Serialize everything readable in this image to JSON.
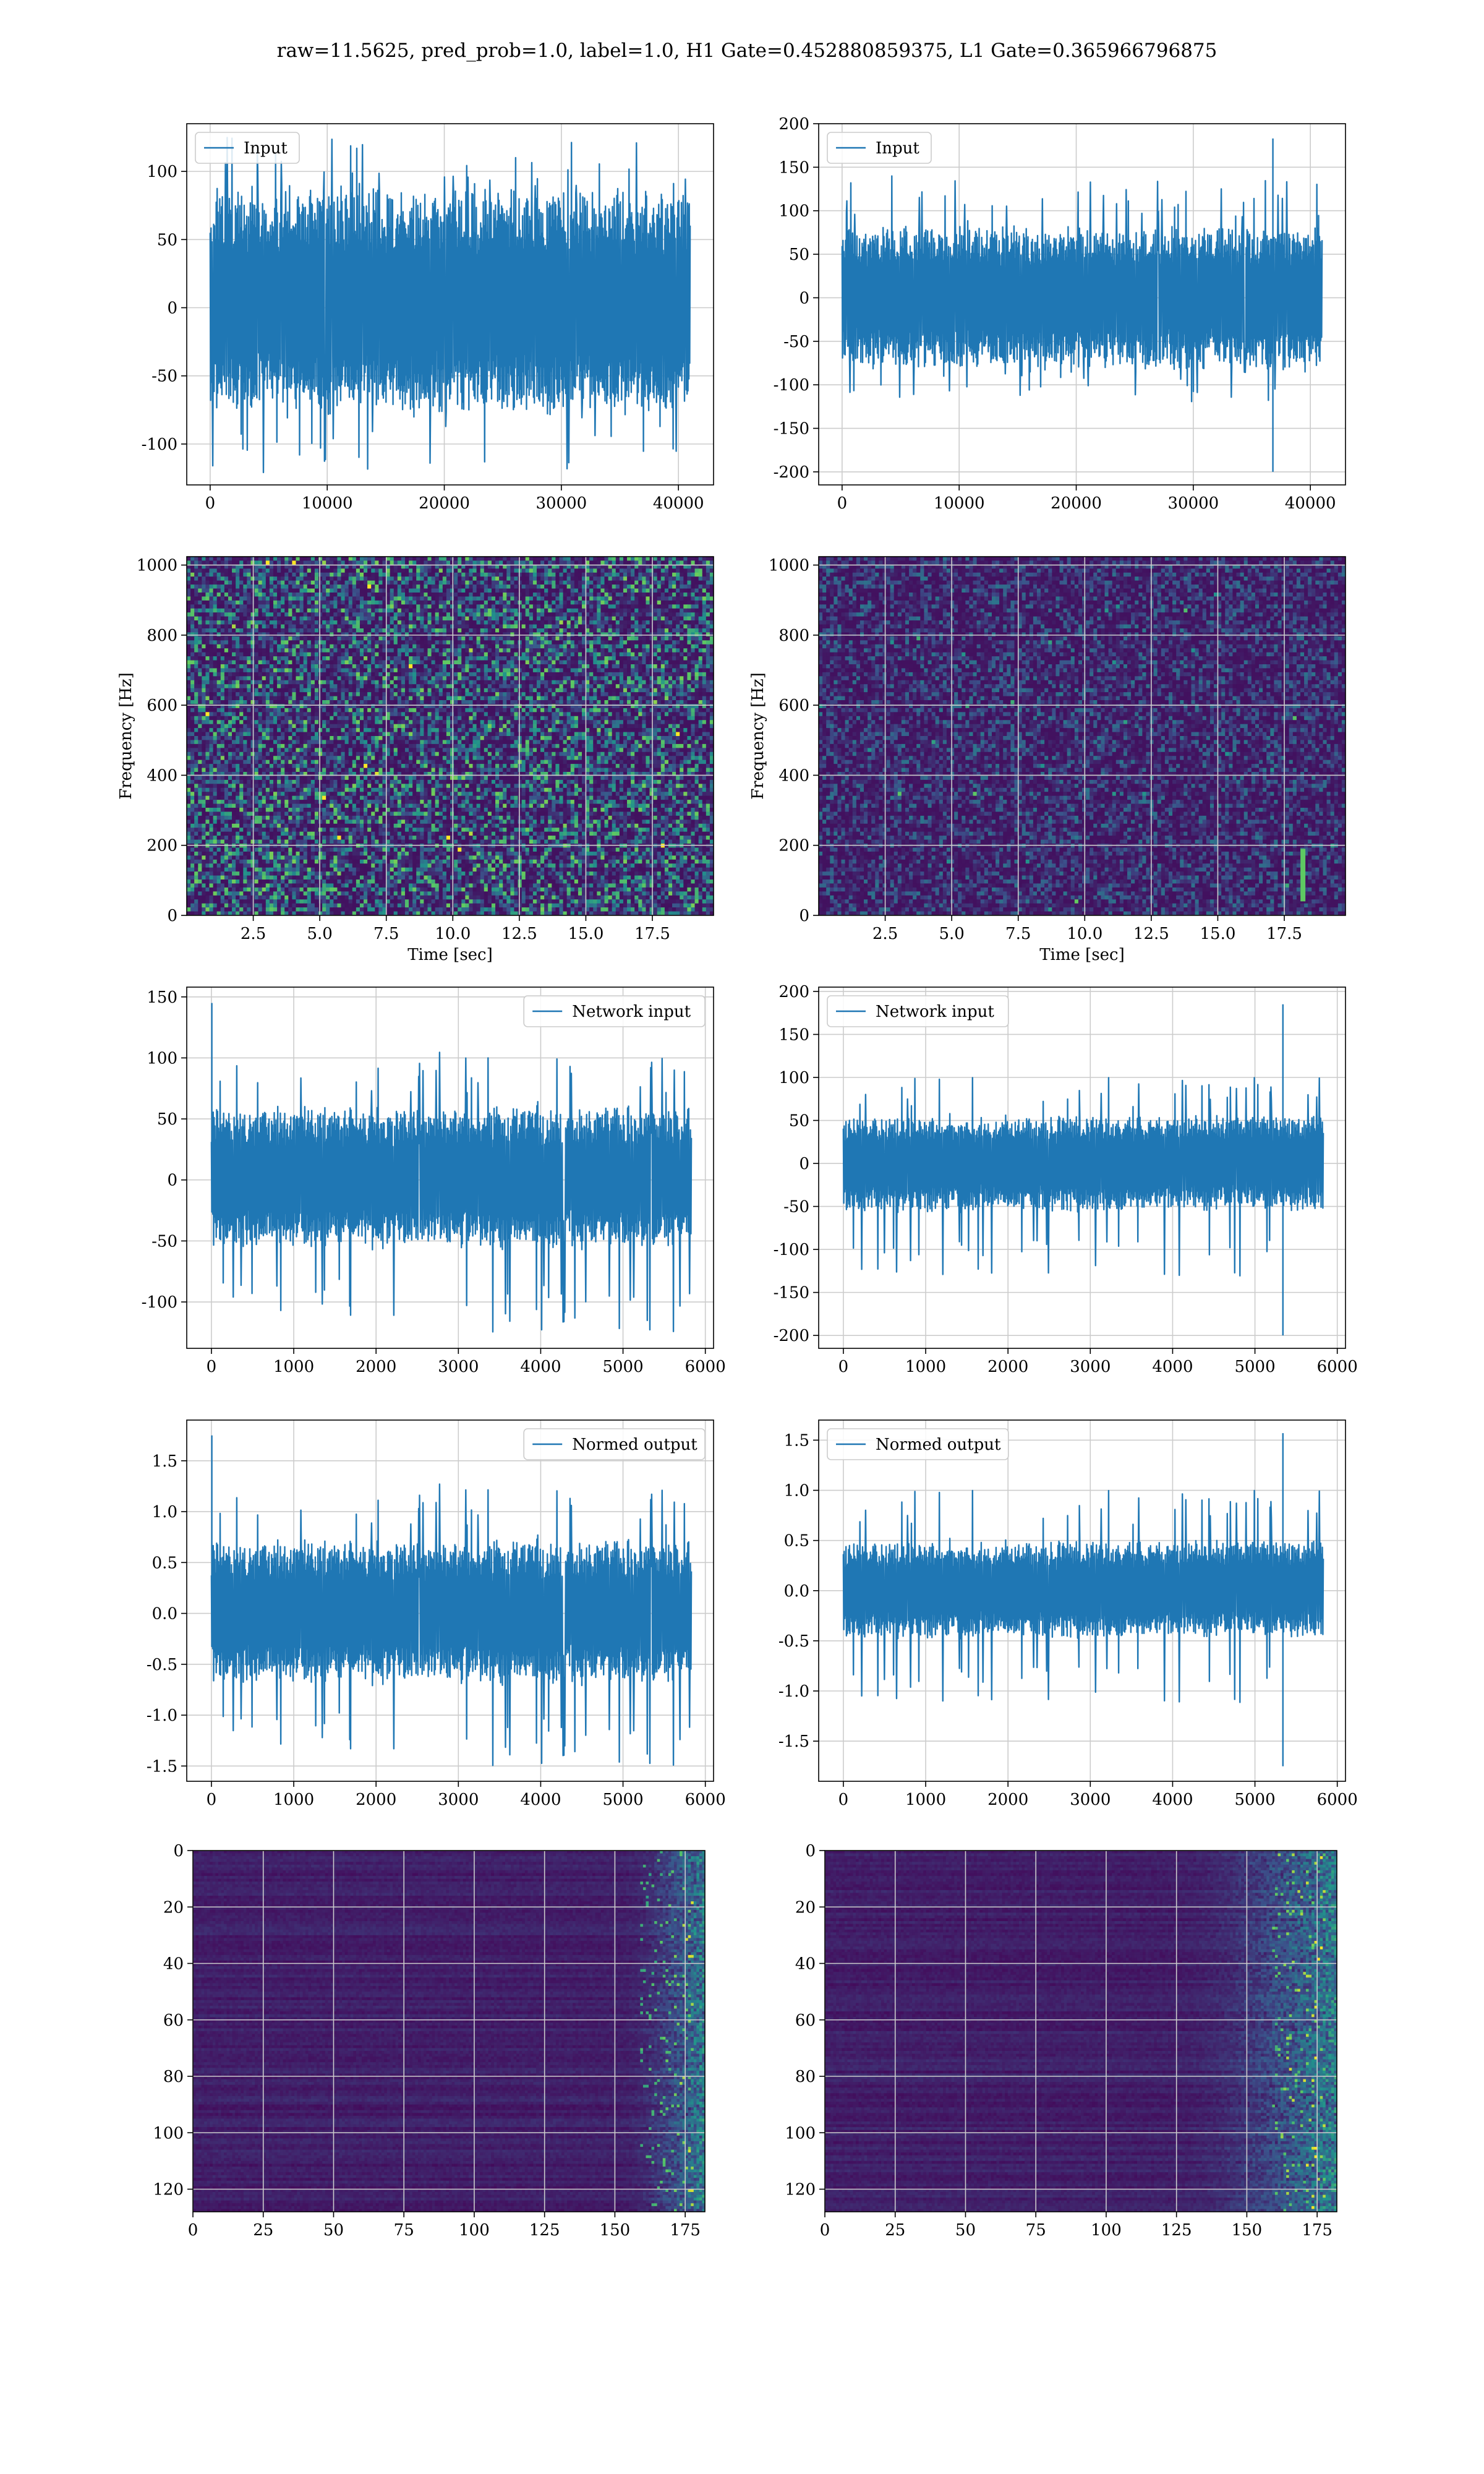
{
  "figure": {
    "suptitle": "raw=11.5625, pred_prob=1.0, label=1.0, H1 Gate=0.452880859375, L1 Gate=0.365966796875"
  },
  "colors": {
    "line": "#1f77b4",
    "grid": "#cccccc",
    "viridis_low": "#440154",
    "viridis_mid": "#21918c",
    "viridis_high": "#fde725"
  },
  "chart_data": [
    {
      "id": "h1-input",
      "type": "line",
      "row": 0,
      "col": 0,
      "legend": "Input",
      "legend_loc": "upper left",
      "grid": true,
      "xlim": [
        -2000,
        43000
      ],
      "ylim": [
        -130,
        135
      ],
      "xticks": [
        0,
        10000,
        20000,
        30000,
        40000
      ],
      "yticks": [
        -100,
        -50,
        0,
        50,
        100
      ],
      "x_range": [
        0,
        41000
      ],
      "envelope": [
        -70,
        80
      ],
      "peak_range": [
        -122,
        125
      ],
      "seed": 11
    },
    {
      "id": "l1-input",
      "type": "line",
      "row": 0,
      "col": 1,
      "legend": "Input",
      "legend_loc": "upper left",
      "grid": true,
      "xlim": [
        -2000,
        43000
      ],
      "ylim": [
        -215,
        200
      ],
      "xticks": [
        0,
        10000,
        20000,
        30000,
        40000
      ],
      "yticks": [
        -200,
        -150,
        -100,
        -50,
        0,
        50,
        100,
        150,
        200
      ],
      "x_range": [
        0,
        41000
      ],
      "envelope": [
        -75,
        75
      ],
      "peak_range": [
        -120,
        140
      ],
      "seed": 23,
      "spikes": [
        {
          "x": 36800,
          "ymin": -200,
          "ymax": 183
        }
      ]
    },
    {
      "id": "h1-spectrogram",
      "type": "heatmap",
      "row": 1,
      "col": 0,
      "xlabel": "Time [sec]",
      "ylabel": "Frequency [Hz]",
      "grid": true,
      "xlim": [
        0,
        19.8
      ],
      "ylim": [
        0,
        1024
      ],
      "xticks": [
        2.5,
        5.0,
        7.5,
        10.0,
        12.5,
        15.0,
        17.5
      ],
      "yticks": [
        0,
        200,
        400,
        600,
        800,
        1000
      ],
      "intensity": 0.34,
      "seed": 5
    },
    {
      "id": "l1-spectrogram",
      "type": "heatmap",
      "row": 1,
      "col": 1,
      "xlabel": "Time [sec]",
      "ylabel": "Frequency [Hz]",
      "grid": true,
      "xlim": [
        0,
        19.8
      ],
      "ylim": [
        0,
        1024
      ],
      "xticks": [
        2.5,
        5.0,
        7.5,
        10.0,
        12.5,
        15.0,
        17.5
      ],
      "yticks": [
        0,
        200,
        400,
        600,
        800,
        1000
      ],
      "intensity": 0.16,
      "seed": 9,
      "features": [
        {
          "t": 18.2,
          "f_min": 40,
          "f_max": 190
        }
      ]
    },
    {
      "id": "h1-network-input",
      "type": "line",
      "row": 2,
      "col": 0,
      "legend": "Network input",
      "legend_loc": "upper right",
      "grid": true,
      "xlim": [
        -300,
        6100
      ],
      "ylim": [
        -138,
        158
      ],
      "xticks": [
        0,
        1000,
        2000,
        3000,
        4000,
        5000,
        6000
      ],
      "yticks": [
        -100,
        -50,
        0,
        50,
        100,
        150
      ],
      "x_range": [
        0,
        5830
      ],
      "envelope": [
        -50,
        55
      ],
      "peak_range": [
        -125,
        107
      ],
      "seed": 31,
      "spikes": [
        {
          "x": 5,
          "ymin": -20,
          "ymax": 145
        }
      ]
    },
    {
      "id": "l1-network-input",
      "type": "line",
      "row": 2,
      "col": 1,
      "legend": "Network input",
      "legend_loc": "upper left",
      "grid": true,
      "xlim": [
        -300,
        6100
      ],
      "ylim": [
        -215,
        205
      ],
      "xticks": [
        0,
        1000,
        2000,
        3000,
        4000,
        5000,
        6000
      ],
      "yticks": [
        -200,
        -150,
        -100,
        -50,
        0,
        50,
        100,
        150,
        200
      ],
      "x_range": [
        0,
        5830
      ],
      "envelope": [
        -50,
        50
      ],
      "peak_range": [
        -135,
        100
      ],
      "seed": 47,
      "spikes": [
        {
          "x": 5340,
          "ymin": -200,
          "ymax": 185
        }
      ]
    },
    {
      "id": "h1-normed-output",
      "type": "line",
      "row": 3,
      "col": 0,
      "legend": "Normed output",
      "legend_loc": "upper right",
      "grid": true,
      "xlim": [
        -300,
        6100
      ],
      "ylim": [
        -1.65,
        1.9
      ],
      "xticks": [
        0,
        1000,
        2000,
        3000,
        4000,
        5000,
        6000
      ],
      "yticks": [
        -1.5,
        -1.0,
        -0.5,
        0.0,
        0.5,
        1.0,
        1.5
      ],
      "x_range": [
        0,
        5830
      ],
      "envelope": [
        -0.62,
        0.66
      ],
      "peak_range": [
        -1.5,
        1.3
      ],
      "seed": 31,
      "spikes": [
        {
          "x": 5,
          "ymin": -0.2,
          "ymax": 1.75
        }
      ]
    },
    {
      "id": "l1-normed-output",
      "type": "line",
      "row": 3,
      "col": 1,
      "legend": "Normed output",
      "legend_loc": "upper left",
      "grid": true,
      "xlim": [
        -300,
        6100
      ],
      "ylim": [
        -1.9,
        1.7
      ],
      "xticks": [
        0,
        1000,
        2000,
        3000,
        4000,
        5000,
        6000
      ],
      "yticks": [
        -1.5,
        -1.0,
        -0.5,
        0.0,
        0.5,
        1.0,
        1.5
      ],
      "x_range": [
        0,
        5830
      ],
      "envelope": [
        -0.42,
        0.45
      ],
      "peak_range": [
        -1.15,
        1.0
      ],
      "seed": 47,
      "spikes": [
        {
          "x": 5340,
          "ymin": -1.75,
          "ymax": 1.57
        }
      ]
    },
    {
      "id": "h1-feature-map",
      "type": "heatmap",
      "row": 4,
      "col": 0,
      "grid": true,
      "y_inverted": true,
      "xlim": [
        0,
        182
      ],
      "ylim": [
        0,
        128
      ],
      "xticks": [
        0,
        25,
        50,
        75,
        100,
        125,
        150,
        175
      ],
      "yticks": [
        0,
        20,
        40,
        60,
        80,
        100,
        120
      ],
      "intensity": 0.12,
      "hot_region": [
        150,
        182
      ],
      "seed": 3
    },
    {
      "id": "l1-feature-map",
      "type": "heatmap",
      "row": 4,
      "col": 1,
      "grid": true,
      "y_inverted": true,
      "xlim": [
        0,
        182
      ],
      "ylim": [
        0,
        128
      ],
      "xticks": [
        0,
        25,
        50,
        75,
        100,
        125,
        150,
        175
      ],
      "yticks": [
        0,
        20,
        40,
        60,
        80,
        100,
        120
      ],
      "intensity": 0.12,
      "hot_region": [
        120,
        182
      ],
      "seed": 17
    }
  ]
}
